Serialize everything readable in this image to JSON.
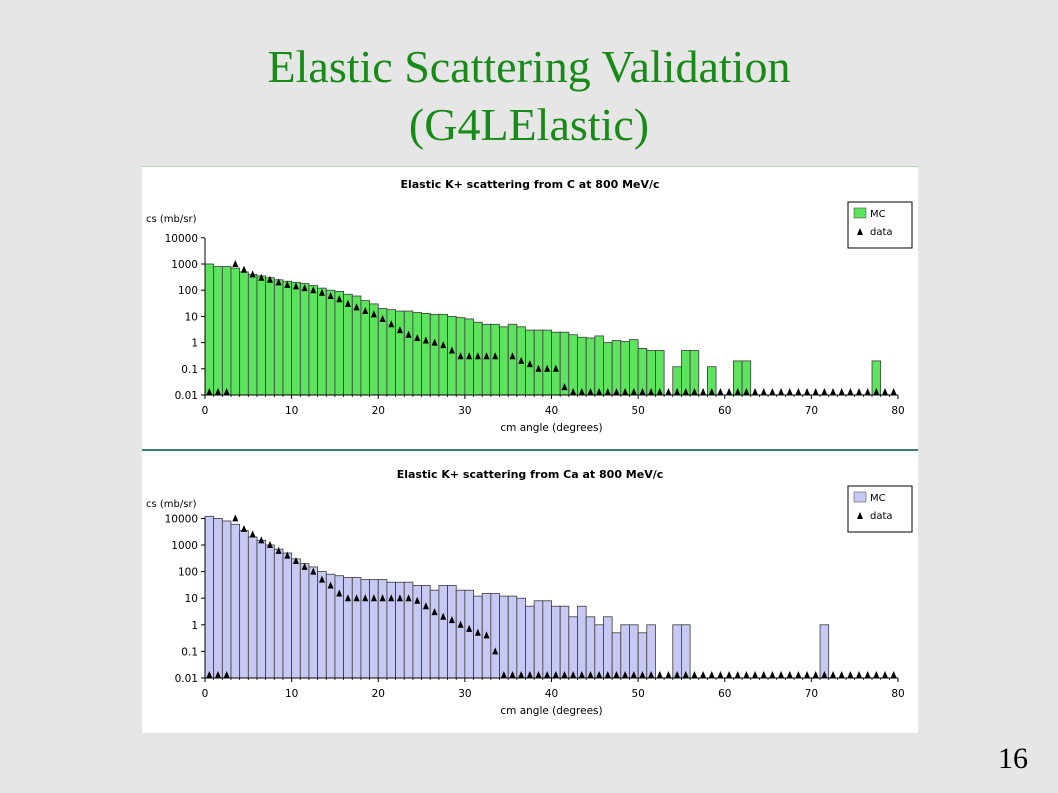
{
  "slide": {
    "title_line1": "Elastic Scattering Validation",
    "title_line2": "(G4LElastic)",
    "page_number": "16"
  },
  "colors": {
    "title": "#178a17",
    "mc_carbon": "#5ee35e",
    "mc_calcium": "#c8c8f5"
  },
  "chart_data": [
    {
      "type": "bar",
      "title": "Elastic K+ scattering from C at 800 MeV/c",
      "ylabel": "cs (mb/sr)",
      "xlabel": "cm angle (degrees)",
      "xlim": [
        0,
        80
      ],
      "ylim": [
        0.01,
        10000
      ],
      "yscale": "log",
      "xticks": [
        "0",
        "10",
        "20",
        "30",
        "40",
        "50",
        "60",
        "70",
        "80"
      ],
      "yticks": [
        "10000",
        "1000",
        "100",
        "10",
        "1",
        "0.1",
        "0.01"
      ],
      "legend": {
        "placement": "top-right",
        "entries": [
          "MC",
          "data"
        ]
      },
      "series": [
        {
          "name": "MC",
          "style": "bars",
          "color": "#5ee35e",
          "bin_width": 1,
          "x": [
            0,
            1,
            2,
            3,
            4,
            5,
            6,
            7,
            8,
            9,
            10,
            11,
            12,
            13,
            14,
            15,
            16,
            17,
            18,
            19,
            20,
            21,
            22,
            23,
            24,
            25,
            26,
            27,
            28,
            29,
            30,
            31,
            32,
            33,
            34,
            35,
            36,
            37,
            38,
            39,
            40,
            41,
            42,
            43,
            44,
            45,
            46,
            47,
            48,
            49,
            50,
            51,
            52,
            53,
            54,
            55,
            56,
            57,
            58,
            59,
            60,
            61,
            62,
            63,
            64,
            65,
            66,
            67,
            68,
            69,
            70,
            71,
            72,
            73,
            74,
            75,
            76,
            77,
            78,
            79
          ],
          "values": [
            1000,
            800,
            800,
            700,
            500,
            400,
            350,
            300,
            250,
            220,
            200,
            180,
            150,
            120,
            100,
            90,
            70,
            60,
            40,
            30,
            20,
            18,
            16,
            16,
            14,
            13,
            12,
            12,
            10,
            9,
            8,
            6,
            5,
            5,
            4,
            5,
            4,
            3,
            3,
            3,
            2.5,
            2.5,
            2,
            1.6,
            1.5,
            1.8,
            1,
            1.2,
            1.1,
            1.3,
            0.6,
            0.5,
            0.5,
            0,
            0.12,
            0.5,
            0.5,
            0,
            0.12,
            0,
            0,
            0.2,
            0.2,
            0,
            0,
            0,
            0,
            0,
            0,
            0,
            0,
            0,
            0,
            0,
            0,
            0,
            0,
            0.2,
            0,
            0
          ]
        },
        {
          "name": "data",
          "style": "triangles",
          "x": [
            3.5,
            4.5,
            5.5,
            6.5,
            7.5,
            8.5,
            9.5,
            10.5,
            11.5,
            12.5,
            13.5,
            14.5,
            15.5,
            16.5,
            17.5,
            18.5,
            19.5,
            20.5,
            21.5,
            22.5,
            23.5,
            24.5,
            25.5,
            26.5,
            27.5,
            28.5,
            29.5,
            30.5,
            31.5,
            32.5,
            33.5,
            35.5,
            36.5,
            37.5,
            38.5,
            39.5,
            40.5,
            41.5
          ],
          "values": [
            1000,
            600,
            400,
            300,
            250,
            200,
            160,
            140,
            120,
            100,
            80,
            60,
            45,
            30,
            22,
            16,
            12,
            8,
            5,
            3,
            2,
            1.5,
            1.2,
            1,
            0.8,
            0.5,
            0.3,
            0.3,
            0.3,
            0.3,
            0.3,
            0.3,
            0.2,
            0.15,
            0.1,
            0.1,
            0.1,
            0.02
          ]
        }
      ]
    },
    {
      "type": "bar",
      "title": "Elastic K+ scattering from Ca at 800 MeV/c",
      "ylabel": "cs (mb/sr)",
      "xlabel": "cm angle (degrees)",
      "xlim": [
        0,
        80
      ],
      "ylim": [
        0.01,
        100000
      ],
      "yscale": "log",
      "xticks": [
        "0",
        "10",
        "20",
        "30",
        "40",
        "50",
        "60",
        "70",
        "80"
      ],
      "yticks": [
        "10000",
        "1000",
        "100",
        "10",
        "1",
        "0.1",
        "0.01"
      ],
      "legend": {
        "placement": "top-right",
        "entries": [
          "MC",
          "data"
        ]
      },
      "series": [
        {
          "name": "MC",
          "style": "bars",
          "color": "#c8c8f5",
          "bin_width": 1,
          "x": [
            0,
            1,
            2,
            3,
            4,
            5,
            6,
            7,
            8,
            9,
            10,
            11,
            12,
            13,
            14,
            15,
            16,
            17,
            18,
            19,
            20,
            21,
            22,
            23,
            24,
            25,
            26,
            27,
            28,
            29,
            30,
            31,
            32,
            33,
            34,
            35,
            36,
            37,
            38,
            39,
            40,
            41,
            42,
            43,
            44,
            45,
            46,
            47,
            48,
            49,
            50,
            51,
            52,
            53,
            54,
            55,
            56,
            57,
            58,
            59,
            60,
            61,
            62,
            63,
            64,
            65,
            66,
            67,
            68,
            69,
            70,
            71,
            72,
            73,
            74,
            75,
            76,
            77,
            78,
            79
          ],
          "values": [
            12000,
            10000,
            8000,
            6000,
            3500,
            2000,
            1500,
            1000,
            700,
            500,
            300,
            200,
            150,
            100,
            80,
            70,
            60,
            60,
            50,
            50,
            50,
            40,
            40,
            40,
            30,
            30,
            20,
            30,
            30,
            20,
            20,
            12,
            15,
            15,
            12,
            12,
            10,
            5,
            8,
            8,
            5,
            5,
            2,
            5,
            2,
            1,
            2,
            0.5,
            1,
            1,
            0.5,
            1,
            0,
            0,
            1,
            1,
            0,
            0,
            0,
            0,
            0,
            0,
            0,
            0,
            0,
            0,
            0,
            0,
            0,
            0,
            0,
            1,
            0,
            0,
            0,
            0,
            0,
            0,
            0,
            0
          ]
        },
        {
          "name": "data",
          "style": "triangles",
          "x": [
            3.5,
            4.5,
            5.5,
            6.5,
            7.5,
            8.5,
            9.5,
            10.5,
            11.5,
            12.5,
            13.5,
            14.5,
            15.5,
            16.5,
            17.5,
            18.5,
            19.5,
            20.5,
            21.5,
            22.5,
            23.5,
            24.5,
            25.5,
            26.5,
            27.5,
            28.5,
            29.5,
            30.5,
            31.5,
            32.5,
            33.5
          ],
          "values": [
            10000,
            4000,
            2500,
            1500,
            1000,
            600,
            400,
            250,
            150,
            100,
            50,
            30,
            15,
            10,
            10,
            10,
            10,
            10,
            10,
            10,
            10,
            8,
            5,
            3,
            2,
            1.5,
            1,
            0.7,
            0.5,
            0.4,
            0.1
          ]
        }
      ]
    }
  ]
}
